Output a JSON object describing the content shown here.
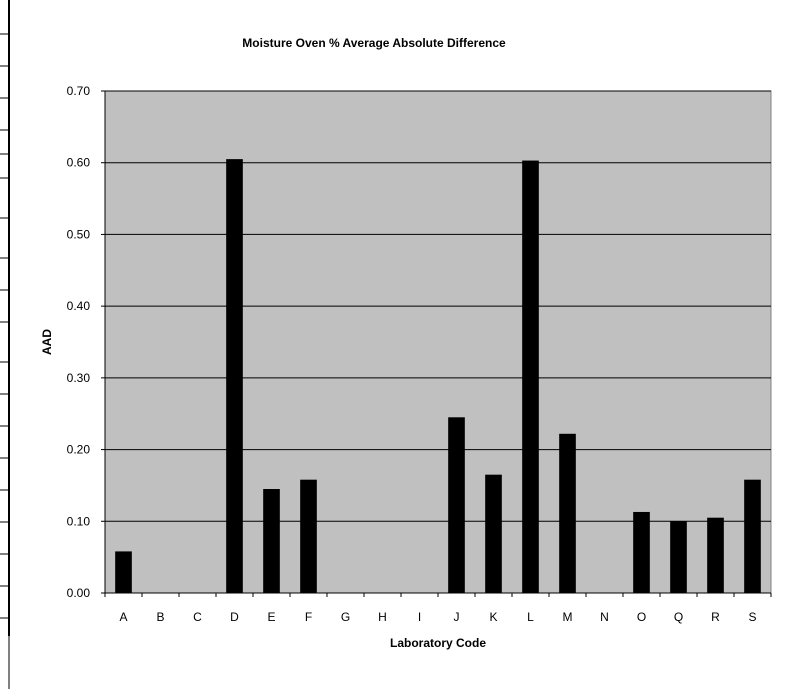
{
  "chart_data": {
    "type": "bar",
    "title": "Moisture Oven % Average Absolute Difference",
    "xlabel": "Laboratory Code",
    "ylabel": "AAD",
    "categories": [
      "A",
      "B",
      "C",
      "D",
      "E",
      "F",
      "G",
      "H",
      "I",
      "J",
      "K",
      "L",
      "M",
      "N",
      "O",
      "Q",
      "R",
      "S"
    ],
    "values": [
      0.058,
      0,
      0,
      0.605,
      0.145,
      0.158,
      0,
      0,
      0,
      0.245,
      0.165,
      0.603,
      0.222,
      0,
      0.113,
      0.1,
      0.105,
      0.158
    ],
    "ylim": [
      0,
      0.7
    ],
    "yticks": [
      "0.00",
      "0.10",
      "0.20",
      "0.30",
      "0.40",
      "0.50",
      "0.60",
      "0.70"
    ],
    "grid": true,
    "legend": "none",
    "colors": {
      "bar": "#000000",
      "plot_background": "#c0c0c0",
      "gridline": "#000000",
      "page_background": "#ffffff"
    }
  }
}
